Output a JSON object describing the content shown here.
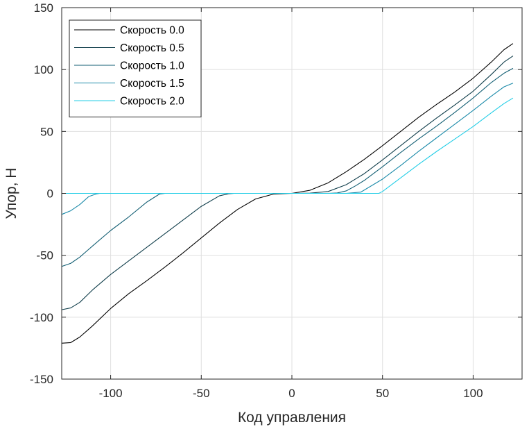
{
  "chart_data": {
    "type": "line",
    "xlabel": "Код управления",
    "ylabel": "Упор, Н",
    "xlim": [
      -127,
      127
    ],
    "ylim": [
      -150,
      150
    ],
    "xticks": [
      -100,
      -50,
      0,
      50,
      100
    ],
    "yticks": [
      -150,
      -100,
      -50,
      0,
      50,
      100,
      150
    ],
    "xtick_labels": [
      "-100",
      "-50",
      "0",
      "50",
      "100"
    ],
    "ytick_labels": [
      "-150",
      "-100",
      "-50",
      "0",
      "50",
      "100",
      "150"
    ],
    "grid": true,
    "legend_position": "top-left",
    "series": [
      {
        "name": "Скорость 0.0",
        "color": "#000000",
        "x": [
          -127,
          -122,
          -117,
          -110,
          -100,
          -90,
          -80,
          -70,
          -60,
          -50,
          -40,
          -30,
          -20,
          -10,
          0,
          10,
          20,
          30,
          40,
          50,
          60,
          70,
          80,
          90,
          100,
          110,
          117,
          122
        ],
        "y": [
          -121,
          -120.5,
          -116,
          -107,
          -93,
          -81,
          -70.5,
          -59.5,
          -48,
          -36,
          -24,
          -13,
          -4.5,
          -0.5,
          0,
          2.5,
          8.5,
          17.5,
          27.5,
          38.5,
          50,
          61.5,
          72,
          82,
          93,
          106,
          116,
          121
        ]
      },
      {
        "name": "Скорость 0.5",
        "color": "#0e3c49",
        "x": [
          -127,
          -122,
          -117,
          -110,
          -100,
          -90,
          -80,
          -70,
          -60,
          -50,
          -40,
          -35,
          -32,
          -30,
          0,
          10,
          20,
          30,
          40,
          50,
          60,
          70,
          80,
          90,
          100,
          110,
          117,
          122
        ],
        "y": [
          -94,
          -92.5,
          -88,
          -78,
          -65.5,
          -54.5,
          -43.5,
          -32.5,
          -21.5,
          -10.5,
          -2,
          -0.3,
          0,
          0,
          0,
          0.2,
          1.5,
          7,
          16,
          27,
          38.5,
          50,
          61,
          71.5,
          82.5,
          96,
          106,
          111
        ]
      },
      {
        "name": "Скорость 1.0",
        "color": "#125e73",
        "x": [
          -127,
          -122,
          -117,
          -110,
          -100,
          -90,
          -80,
          -73,
          -70,
          -66,
          0,
          20,
          25,
          30,
          35,
          40,
          50,
          60,
          70,
          80,
          90,
          100,
          110,
          117,
          122
        ],
        "y": [
          -59,
          -56.5,
          -51.5,
          -42.5,
          -30,
          -19,
          -7,
          -0.5,
          0,
          0,
          0,
          0,
          0.3,
          2,
          6,
          10.5,
          21.5,
          33,
          44,
          54.5,
          65.5,
          77,
          89.5,
          97,
          101
        ]
      },
      {
        "name": "Скорость 1.5",
        "color": "#1989a8",
        "x": [
          -127,
          -122,
          -117,
          -112,
          -108,
          -106,
          0,
          30,
          38,
          42,
          50,
          60,
          70,
          80,
          90,
          100,
          110,
          117,
          122
        ],
        "y": [
          -17,
          -14,
          -9,
          -2.5,
          -0.5,
          0,
          0,
          0,
          1,
          4.5,
          11.5,
          22.5,
          34,
          45,
          56,
          67,
          78.5,
          86,
          89
        ]
      },
      {
        "name": "Скорость 2.0",
        "color": "#21cde6",
        "x": [
          -127,
          0,
          48,
          50,
          60,
          70,
          80,
          90,
          100,
          110,
          117,
          122
        ],
        "y": [
          0,
          0,
          0,
          1.5,
          12.5,
          23.5,
          34,
          44,
          54,
          65,
          72.5,
          77
        ]
      }
    ]
  }
}
